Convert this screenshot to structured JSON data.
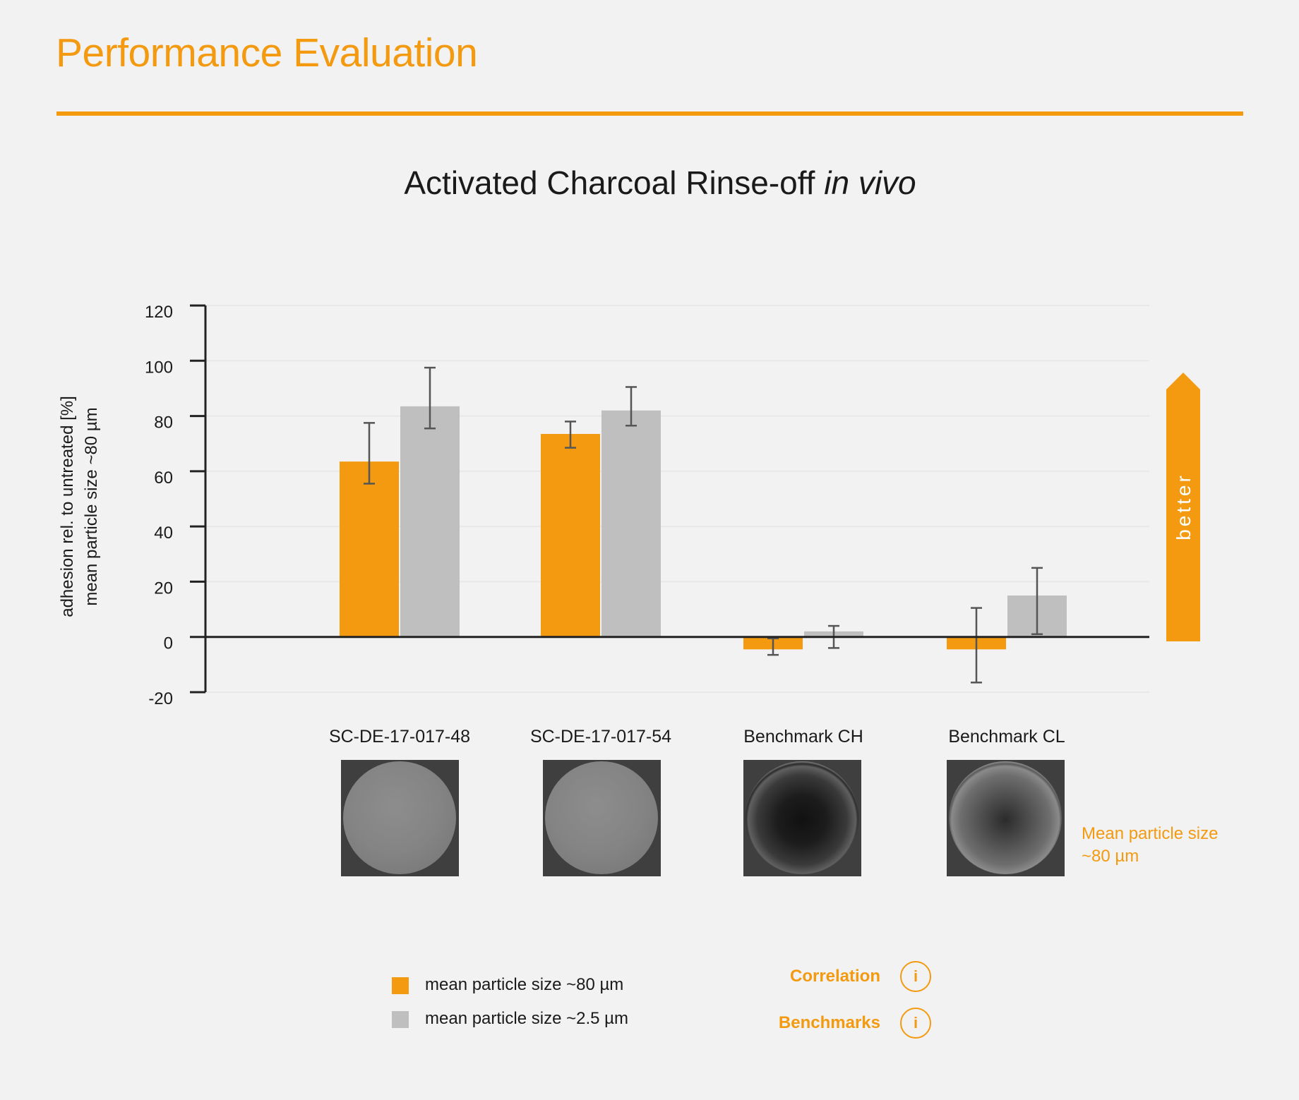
{
  "header": {
    "title": "Performance Evaluation"
  },
  "chart_data": {
    "type": "bar",
    "title": "Activated Charcoal Rinse-off",
    "title_italic": "in vivo",
    "ylabel_lines": [
      "adhesion rel. to untreated [%]",
      "mean particle size ~80 µm"
    ],
    "ylim": [
      -20,
      120
    ],
    "yticks": [
      -20,
      0,
      20,
      40,
      60,
      80,
      100,
      120
    ],
    "grid": true,
    "categories": [
      "SC-DE-17-017-48",
      "SC-DE-17-017-54",
      "Benchmark CH",
      "Benchmark CL"
    ],
    "series": [
      {
        "name": "mean particle size ~80 µm",
        "color": "#f39a10",
        "values": [
          63.5,
          73.5,
          -4.5,
          -4.5
        ],
        "error_low": [
          55.5,
          68.5,
          -6.5,
          -16.5
        ],
        "error_high": [
          77.5,
          78,
          -0.5,
          10.5
        ]
      },
      {
        "name": "mean particle size ~2.5 µm",
        "color": "#bfbfbf",
        "values": [
          83.5,
          82,
          2,
          15
        ],
        "error_low": [
          75.5,
          76.5,
          -4,
          1
        ],
        "error_high": [
          97.5,
          90.5,
          4,
          25
        ]
      }
    ],
    "annotation": "better",
    "legend_placement": "bottom"
  },
  "samples": {
    "caption_line1": "Mean particle size",
    "caption_line2": "~80 µm"
  },
  "info_links": [
    {
      "label": "Correlation",
      "icon": "i"
    },
    {
      "label": "Benchmarks",
      "icon": "i"
    }
  ],
  "colors": {
    "accent": "#f39a10",
    "secondary": "#bfbfbf",
    "background": "#f2f2f2"
  }
}
